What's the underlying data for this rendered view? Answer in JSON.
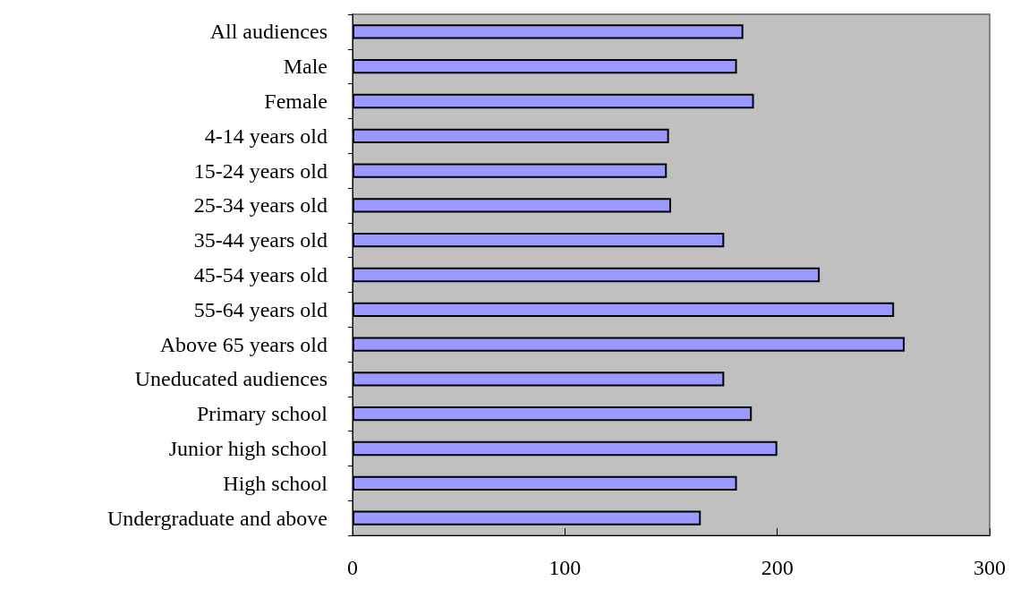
{
  "chart_data": {
    "type": "bar",
    "orientation": "horizontal",
    "categories": [
      "All audiences",
      "Male",
      "Female",
      "4-14 years old",
      "15-24 years old",
      "25-34 years old",
      "35-44 years old",
      "45-54 years old",
      "55-64 years old",
      "Above 65 years old",
      "Uneducated audiences",
      "Primary school",
      "Junior high school",
      "High school",
      "Undergraduate and above"
    ],
    "values": [
      184,
      181,
      189,
      149,
      148,
      150,
      175,
      220,
      255,
      260,
      175,
      188,
      200,
      181,
      164
    ],
    "color": "#9999ff",
    "xlim": [
      0,
      300
    ],
    "xticks": [
      0,
      100,
      200,
      300
    ],
    "grid": false
  }
}
